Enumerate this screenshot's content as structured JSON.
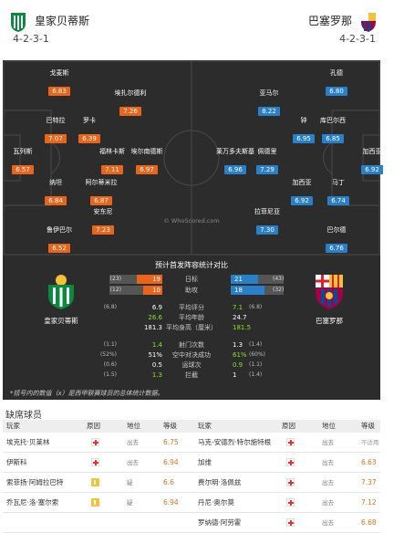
{
  "home": {
    "name": "皇家贝蒂斯",
    "formation": "4-2-3-1",
    "color": "#e8651b",
    "players": [
      {
        "name": "戈麦斯",
        "rating": "6.83"
      },
      {
        "name": "埃扎尔德利",
        "rating": "7.26"
      },
      {
        "name": "巴特拉",
        "rating": "7.07"
      },
      {
        "name": "罗卡",
        "rating": "6.39"
      },
      {
        "name": "瓦列斯",
        "rating": "6.57"
      },
      {
        "name": "福林卡斯",
        "rating": "7.11"
      },
      {
        "name": "埃尔南德斯",
        "rating": "6.97"
      },
      {
        "name": "纳坦",
        "rating": "6.84"
      },
      {
        "name": "阿尔蒂米拉",
        "rating": "6.87"
      },
      {
        "name": "安东尼",
        "rating": "7.23"
      },
      {
        "name": "鲁伊巴尔",
        "rating": "6.52"
      }
    ]
  },
  "away": {
    "name": "巴塞罗那",
    "formation": "4-2-3-1",
    "color": "#2a7fc9",
    "players": [
      {
        "name": "孔德",
        "rating": "6.80"
      },
      {
        "name": "亚马尔",
        "rating": "8.22"
      },
      {
        "name": "钟",
        "rating": "6.95"
      },
      {
        "name": "库巴尔西",
        "rating": "6.85"
      },
      {
        "name": "加西亚",
        "rating": "6.92"
      },
      {
        "name": "莱万多夫斯基",
        "rating": "6.96"
      },
      {
        "name": "佩德里",
        "rating": "7.29"
      },
      {
        "name": "加西亚",
        "rating": "6.92"
      },
      {
        "name": "马丁",
        "rating": "6.74"
      },
      {
        "name": "拉菲尼亚",
        "rating": "7.30"
      },
      {
        "name": "巴尔德",
        "rating": "6.76"
      }
    ]
  },
  "watermark": "© WhoScored.com",
  "stats": {
    "title": "预计首发阵容统计对比",
    "bars": [
      {
        "label": "日标",
        "home": "19",
        "home_sub": "(23)",
        "away": "21",
        "away_sub": "(43)",
        "home_fraction": 0.48,
        "away_fraction": 0.52
      },
      {
        "label": "助攻",
        "home": "10",
        "home_sub": "(12)",
        "away": "18",
        "away_sub": "(32)",
        "home_fraction": 0.36,
        "away_fraction": 0.64
      }
    ],
    "rows_a": [
      {
        "label": "平均评分",
        "home": "6.9",
        "home_sub": "(6.8)",
        "away": "7.1",
        "away_sub": "(6.8)",
        "winner": "away"
      },
      {
        "label": "平均年龄",
        "home": "26.6",
        "home_sub": "",
        "away": "24.7",
        "away_sub": "",
        "winner": "home"
      },
      {
        "label": "平均身高（厘米）",
        "home": "181.3",
        "home_sub": "",
        "away": "181.5",
        "away_sub": "",
        "winner": "away"
      }
    ],
    "rows_b": [
      {
        "label": "射门次数",
        "home": "1.4",
        "home_sub": "(1.1)",
        "away": "1.3",
        "away_sub": "(1.4)",
        "winner": "home"
      },
      {
        "label": "空中对决成功",
        "home": "51%",
        "home_sub": "(52%)",
        "away": "61%",
        "away_sub": "(60%)",
        "winner": "away"
      },
      {
        "label": "运球次",
        "home": "0.5",
        "home_sub": "(0.6)",
        "away": "0.9",
        "away_sub": "(1.1)",
        "winner": "away"
      },
      {
        "label": "拦截",
        "home": "1.3",
        "home_sub": "(1.5)",
        "away": "1",
        "away_sub": "(1.4)",
        "winner": "home"
      }
    ],
    "note": "*括号内的数值（x）是西甲联赛球员的总体统计数据。"
  },
  "missing": {
    "title": "缺席球员",
    "headers": {
      "name": "玩家",
      "reason": "原因",
      "pos": "地位",
      "rating": "等级"
    },
    "home": [
      {
        "name": "埃克托·贝莱林",
        "icon": "injury",
        "status": "出去",
        "rating": "6.75"
      },
      {
        "name": "伊斯科",
        "icon": "injury",
        "status": "出去",
        "rating": "6.94"
      },
      {
        "name": "索菲扬·阿姆拉巴特",
        "icon": "doubt",
        "status": "疑",
        "rating": "6.6"
      },
      {
        "name": "乔瓦尼·洛·塞尔索",
        "icon": "doubt",
        "status": "疑",
        "rating": "6.94"
      }
    ],
    "away": [
      {
        "name": "马克-安德烈·特尔施特根",
        "icon": "injury",
        "status": "出去",
        "rating": "不适用"
      },
      {
        "name": "加维",
        "icon": "injury",
        "status": "出去",
        "rating": "6.63"
      },
      {
        "name": "费尔明·洛佩兹",
        "icon": "injury",
        "status": "出去",
        "rating": "7.37"
      },
      {
        "name": "丹尼·奥尔莫",
        "icon": "injury",
        "status": "出去",
        "rating": "7.12"
      },
      {
        "name": "罗纳德·阿劳霍",
        "icon": "injury",
        "status": "出去",
        "rating": "6.68"
      }
    ]
  }
}
